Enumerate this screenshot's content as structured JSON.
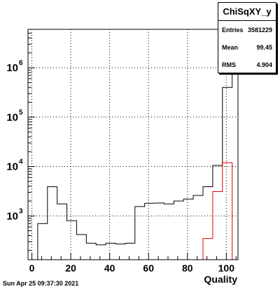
{
  "chart_data": {
    "type": "bar",
    "title": "ChiSqXY_y",
    "xlabel": "Quality",
    "ylabel": "",
    "xlim": [
      -2,
      106
    ],
    "ylim": [
      130,
      6000000
    ],
    "yscale": "log",
    "grid": true,
    "x_ticks": [
      0,
      20,
      40,
      60,
      80,
      100
    ],
    "y_ticks": [
      {
        "value": 1000,
        "mantissa": "10",
        "exp": "3"
      },
      {
        "value": 10000,
        "mantissa": "10",
        "exp": "4"
      },
      {
        "value": 100000,
        "mantissa": "10",
        "exp": "5"
      },
      {
        "value": 1000000,
        "mantissa": "10",
        "exp": "6"
      }
    ],
    "bin_edges": [
      -2,
      3,
      8,
      13,
      18,
      23,
      28,
      33,
      38,
      43,
      48,
      53,
      58,
      63,
      68,
      73,
      78,
      83,
      88,
      93,
      98,
      103,
      106
    ],
    "series": [
      {
        "color": "#000000",
        "values": [
          130,
          700,
          3900,
          1750,
          800,
          420,
          280,
          260,
          280,
          270,
          280,
          1550,
          1800,
          1820,
          1750,
          2000,
          2200,
          2600,
          3900,
          10500,
          400000,
          6000000
        ]
      },
      {
        "color": "#e00000",
        "values": [
          null,
          null,
          null,
          null,
          null,
          null,
          null,
          null,
          null,
          null,
          null,
          null,
          null,
          null,
          null,
          null,
          null,
          null,
          350,
          3100,
          12000,
          null
        ]
      }
    ],
    "stats": {
      "entries_label": "Entries",
      "entries_value": "3581229",
      "mean_label": "Mean",
      "mean_value": "99.45",
      "rms_label": "RMS",
      "rms_value": "4.904"
    }
  },
  "footer": {
    "date": "Sun Apr 25 09:37:30 2021"
  }
}
